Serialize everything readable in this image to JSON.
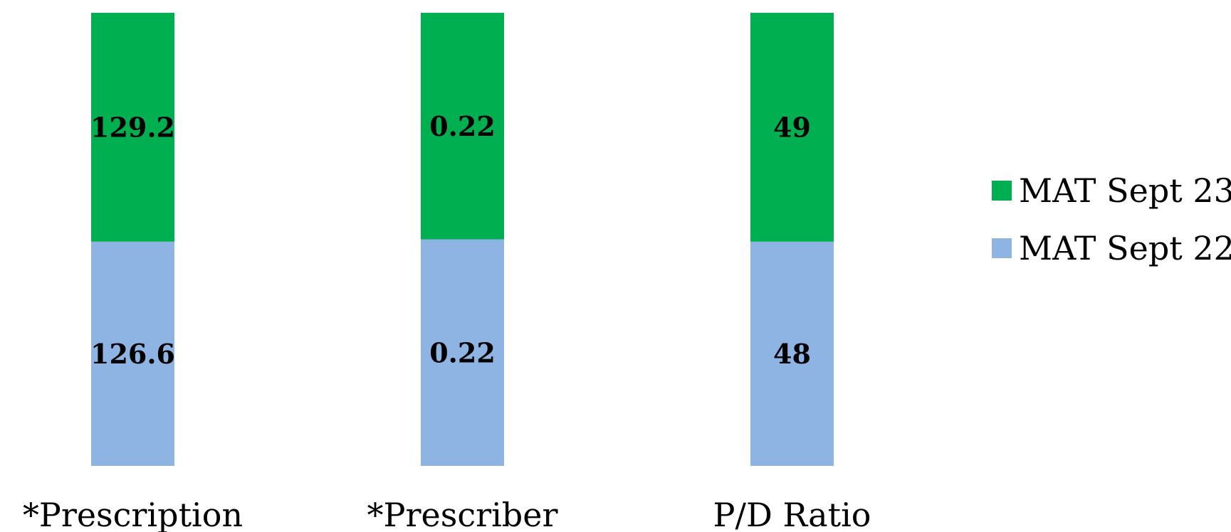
{
  "chart_data": {
    "type": "bar",
    "stacked": true,
    "normalized": true,
    "categories": [
      "*Prescription",
      "*Prescriber",
      "P/D Ratio"
    ],
    "series": [
      {
        "name": "MAT Sept 22",
        "values": [
          126.6,
          0.22,
          48
        ],
        "labels": [
          "126.6",
          "0.22",
          "48"
        ],
        "color": "#8EB4E3"
      },
      {
        "name": "MAT Sept 23",
        "values": [
          129.2,
          0.22,
          49
        ],
        "labels": [
          "129.2",
          "0.22",
          "49"
        ],
        "color": "#00B050"
      }
    ],
    "legend_position": "right",
    "grid": false,
    "axes_visible": false
  }
}
